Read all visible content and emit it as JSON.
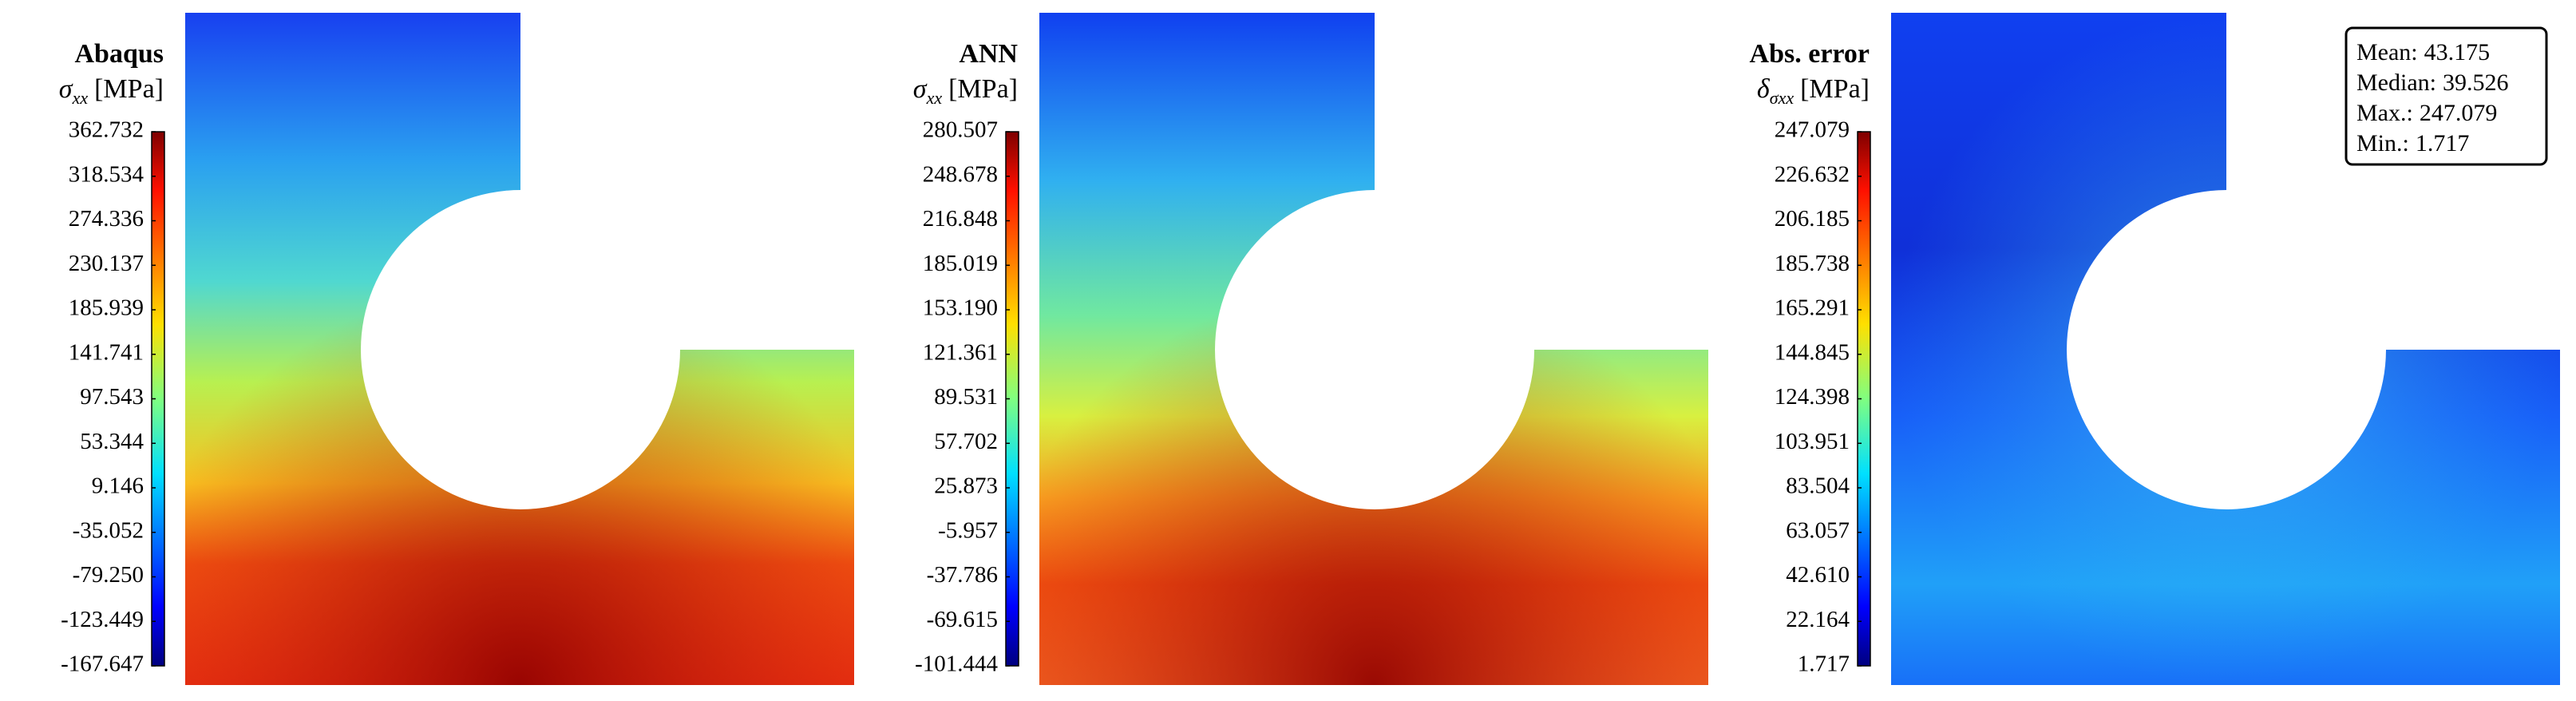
{
  "panels": [
    {
      "title": "Abaqus",
      "symbol": "σ",
      "subscript": "xx",
      "unit": "[MPa]",
      "colorbar_ticks": [
        -167.647,
        -123.449,
        {
          "value": -79.25,
          "label": "-79.250"
        },
        -35.052,
        9.146,
        53.344,
        97.543,
        141.741,
        185.939,
        230.137,
        274.336,
        318.534,
        362.732
      ]
    },
    {
      "title": "ANN",
      "symbol": "σ",
      "subscript": "xx",
      "unit": "[MPa]",
      "colorbar_ticks": [
        -101.444,
        -69.615,
        -37.786,
        -5.957,
        25.873,
        57.702,
        89.531,
        121.361,
        {
          "value": 153.19,
          "label": "153.190"
        },
        185.019,
        216.848,
        248.678,
        280.507
      ]
    },
    {
      "title": "Abs. error",
      "symbol": "δ",
      "subscript": "σxx",
      "unit": "[MPa]",
      "colorbar_ticks": [
        1.717,
        22.164,
        {
          "value": 42.61,
          "label": "42.610"
        },
        63.057,
        83.504,
        103.951,
        124.398,
        144.845,
        165.291,
        185.738,
        206.185,
        226.632,
        247.079
      ]
    }
  ],
  "stats": [
    {
      "label": "Mean:",
      "value": 43.175
    },
    {
      "label": "Median:",
      "value": 39.526
    },
    {
      "label": "Max.:",
      "value": 247.079
    },
    {
      "label": "Min.:",
      "value": 1.717
    }
  ]
}
